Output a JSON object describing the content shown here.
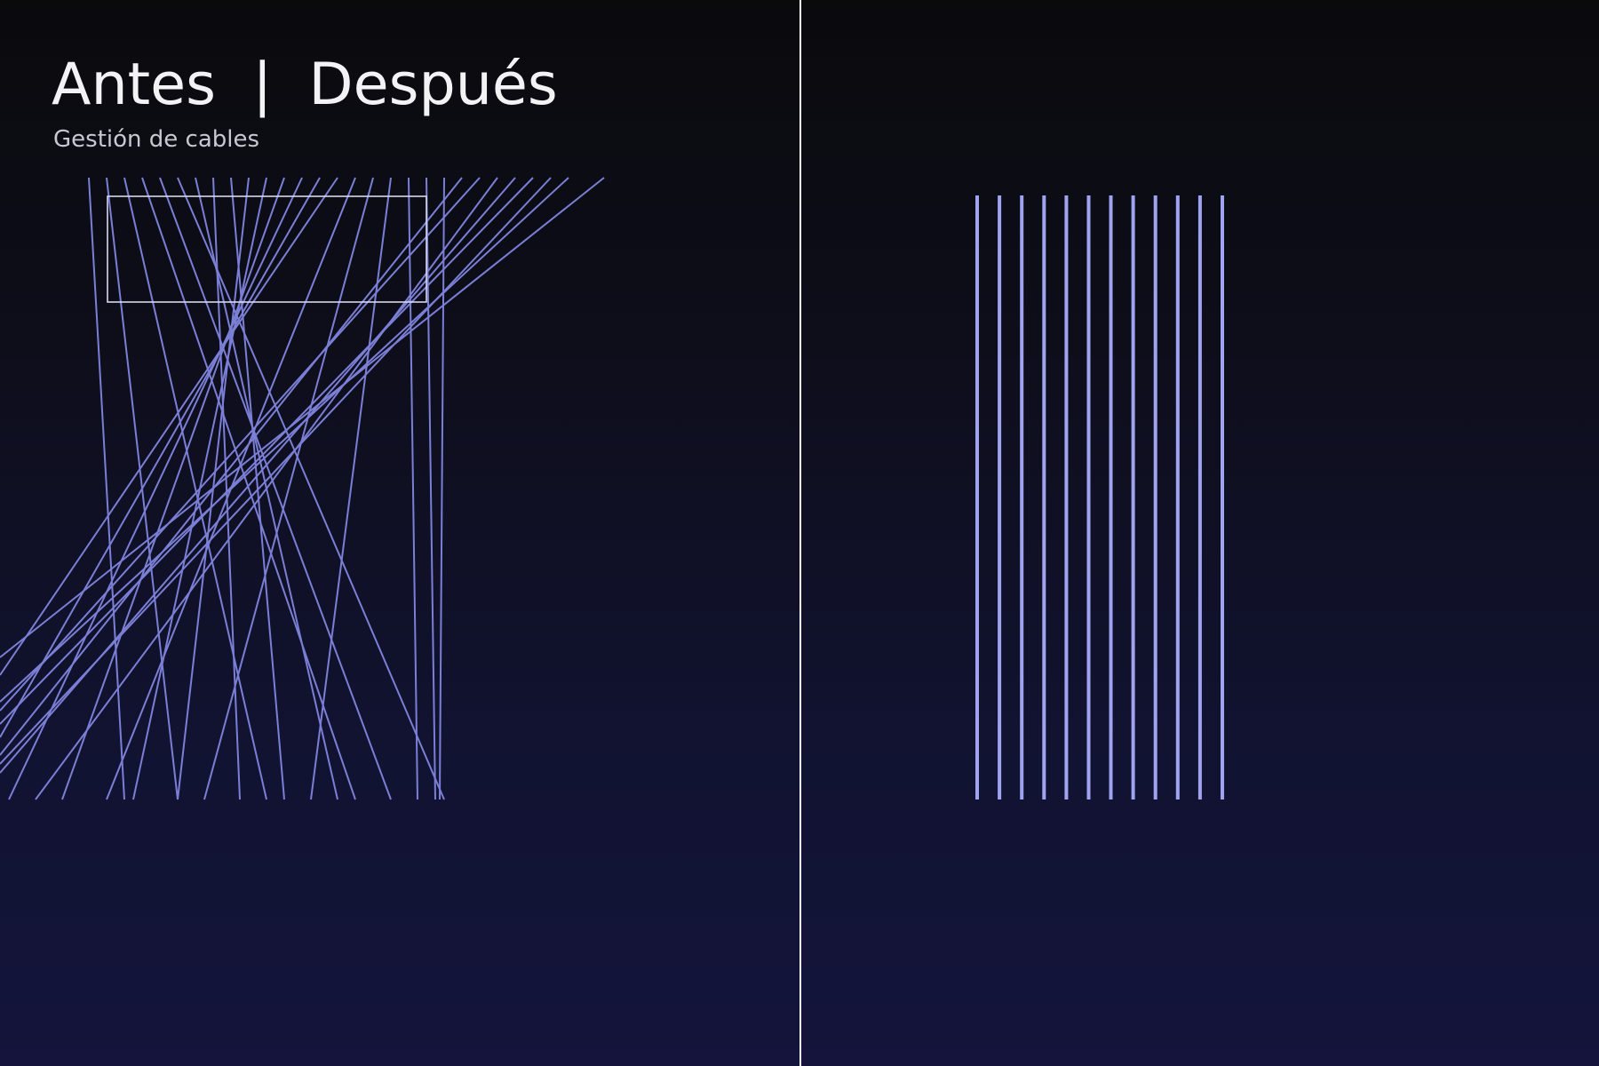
{
  "header": {
    "title": "Antes  |  Después",
    "subtitle": "Gestión de cables"
  },
  "colors": {
    "divider": "#ffffff",
    "cable_before": "#7b7fd6",
    "cable_after": "#9fa3f0",
    "box_outline": "#d8d8ee",
    "title_text": "#f3f3f5",
    "subtitle_text": "#c8c8d2"
  },
  "panels": {
    "before": {
      "label": "Antes",
      "description": "tangled cables",
      "cable_count": 28
    },
    "after": {
      "label": "Después",
      "description": "organized parallel cables",
      "cable_count": 12
    }
  }
}
